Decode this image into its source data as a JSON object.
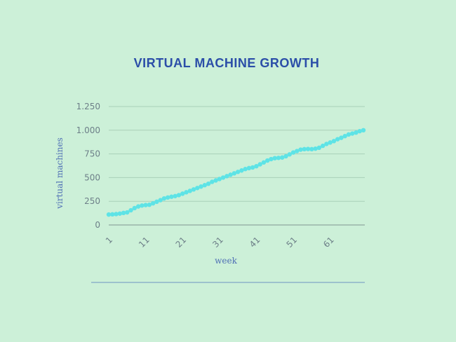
{
  "colors": {
    "background": "#ccf0d8",
    "title": "#2b4ea8",
    "axis_label": "#4f6fb5",
    "tick": "#6d7f88",
    "grid": "#a9d0b8",
    "axis": "#8fa6a0",
    "series": "#5ee3e6",
    "rule": "#6e95c2"
  },
  "chart_data": {
    "type": "line",
    "title": "VIRTUAL MACHINE GROWTH",
    "xlabel": "week",
    "ylabel": "virtual machines",
    "ylim": [
      0,
      1250
    ],
    "yticks": [
      0,
      250,
      500,
      750,
      1000,
      1250
    ],
    "ytick_labels": [
      "0",
      "250",
      "500",
      "750",
      "1.000",
      "1.250"
    ],
    "xticks": [
      1,
      11,
      21,
      31,
      41,
      51,
      61
    ],
    "xtick_labels": [
      "1",
      "11",
      "21",
      "31",
      "41",
      "51",
      "61"
    ],
    "xlim": [
      1,
      70
    ],
    "grid": true,
    "legend": "none",
    "x": [
      1,
      2,
      3,
      4,
      5,
      6,
      7,
      8,
      9,
      10,
      11,
      12,
      13,
      14,
      15,
      16,
      17,
      18,
      19,
      20,
      21,
      22,
      23,
      24,
      25,
      26,
      27,
      28,
      29,
      30,
      31,
      32,
      33,
      34,
      35,
      36,
      37,
      38,
      39,
      40,
      41,
      42,
      43,
      44,
      45,
      46,
      47,
      48,
      49,
      50,
      51,
      52,
      53,
      54,
      55,
      56,
      57,
      58,
      59,
      60,
      61,
      62,
      63,
      64,
      65,
      66,
      67,
      68,
      69,
      70
    ],
    "series": [
      {
        "values": [
          110,
          112,
          115,
          120,
          127,
          133,
          155,
          178,
          195,
          205,
          210,
          213,
          228,
          245,
          262,
          280,
          290,
          298,
          305,
          315,
          330,
          345,
          360,
          375,
          390,
          405,
          420,
          435,
          455,
          470,
          485,
          500,
          515,
          530,
          545,
          560,
          575,
          590,
          600,
          607,
          620,
          640,
          660,
          680,
          695,
          705,
          708,
          712,
          725,
          745,
          765,
          780,
          795,
          800,
          802,
          800,
          805,
          815,
          835,
          855,
          870,
          885,
          905,
          920,
          938,
          955,
          965,
          975,
          990,
          1000
        ]
      }
    ]
  }
}
